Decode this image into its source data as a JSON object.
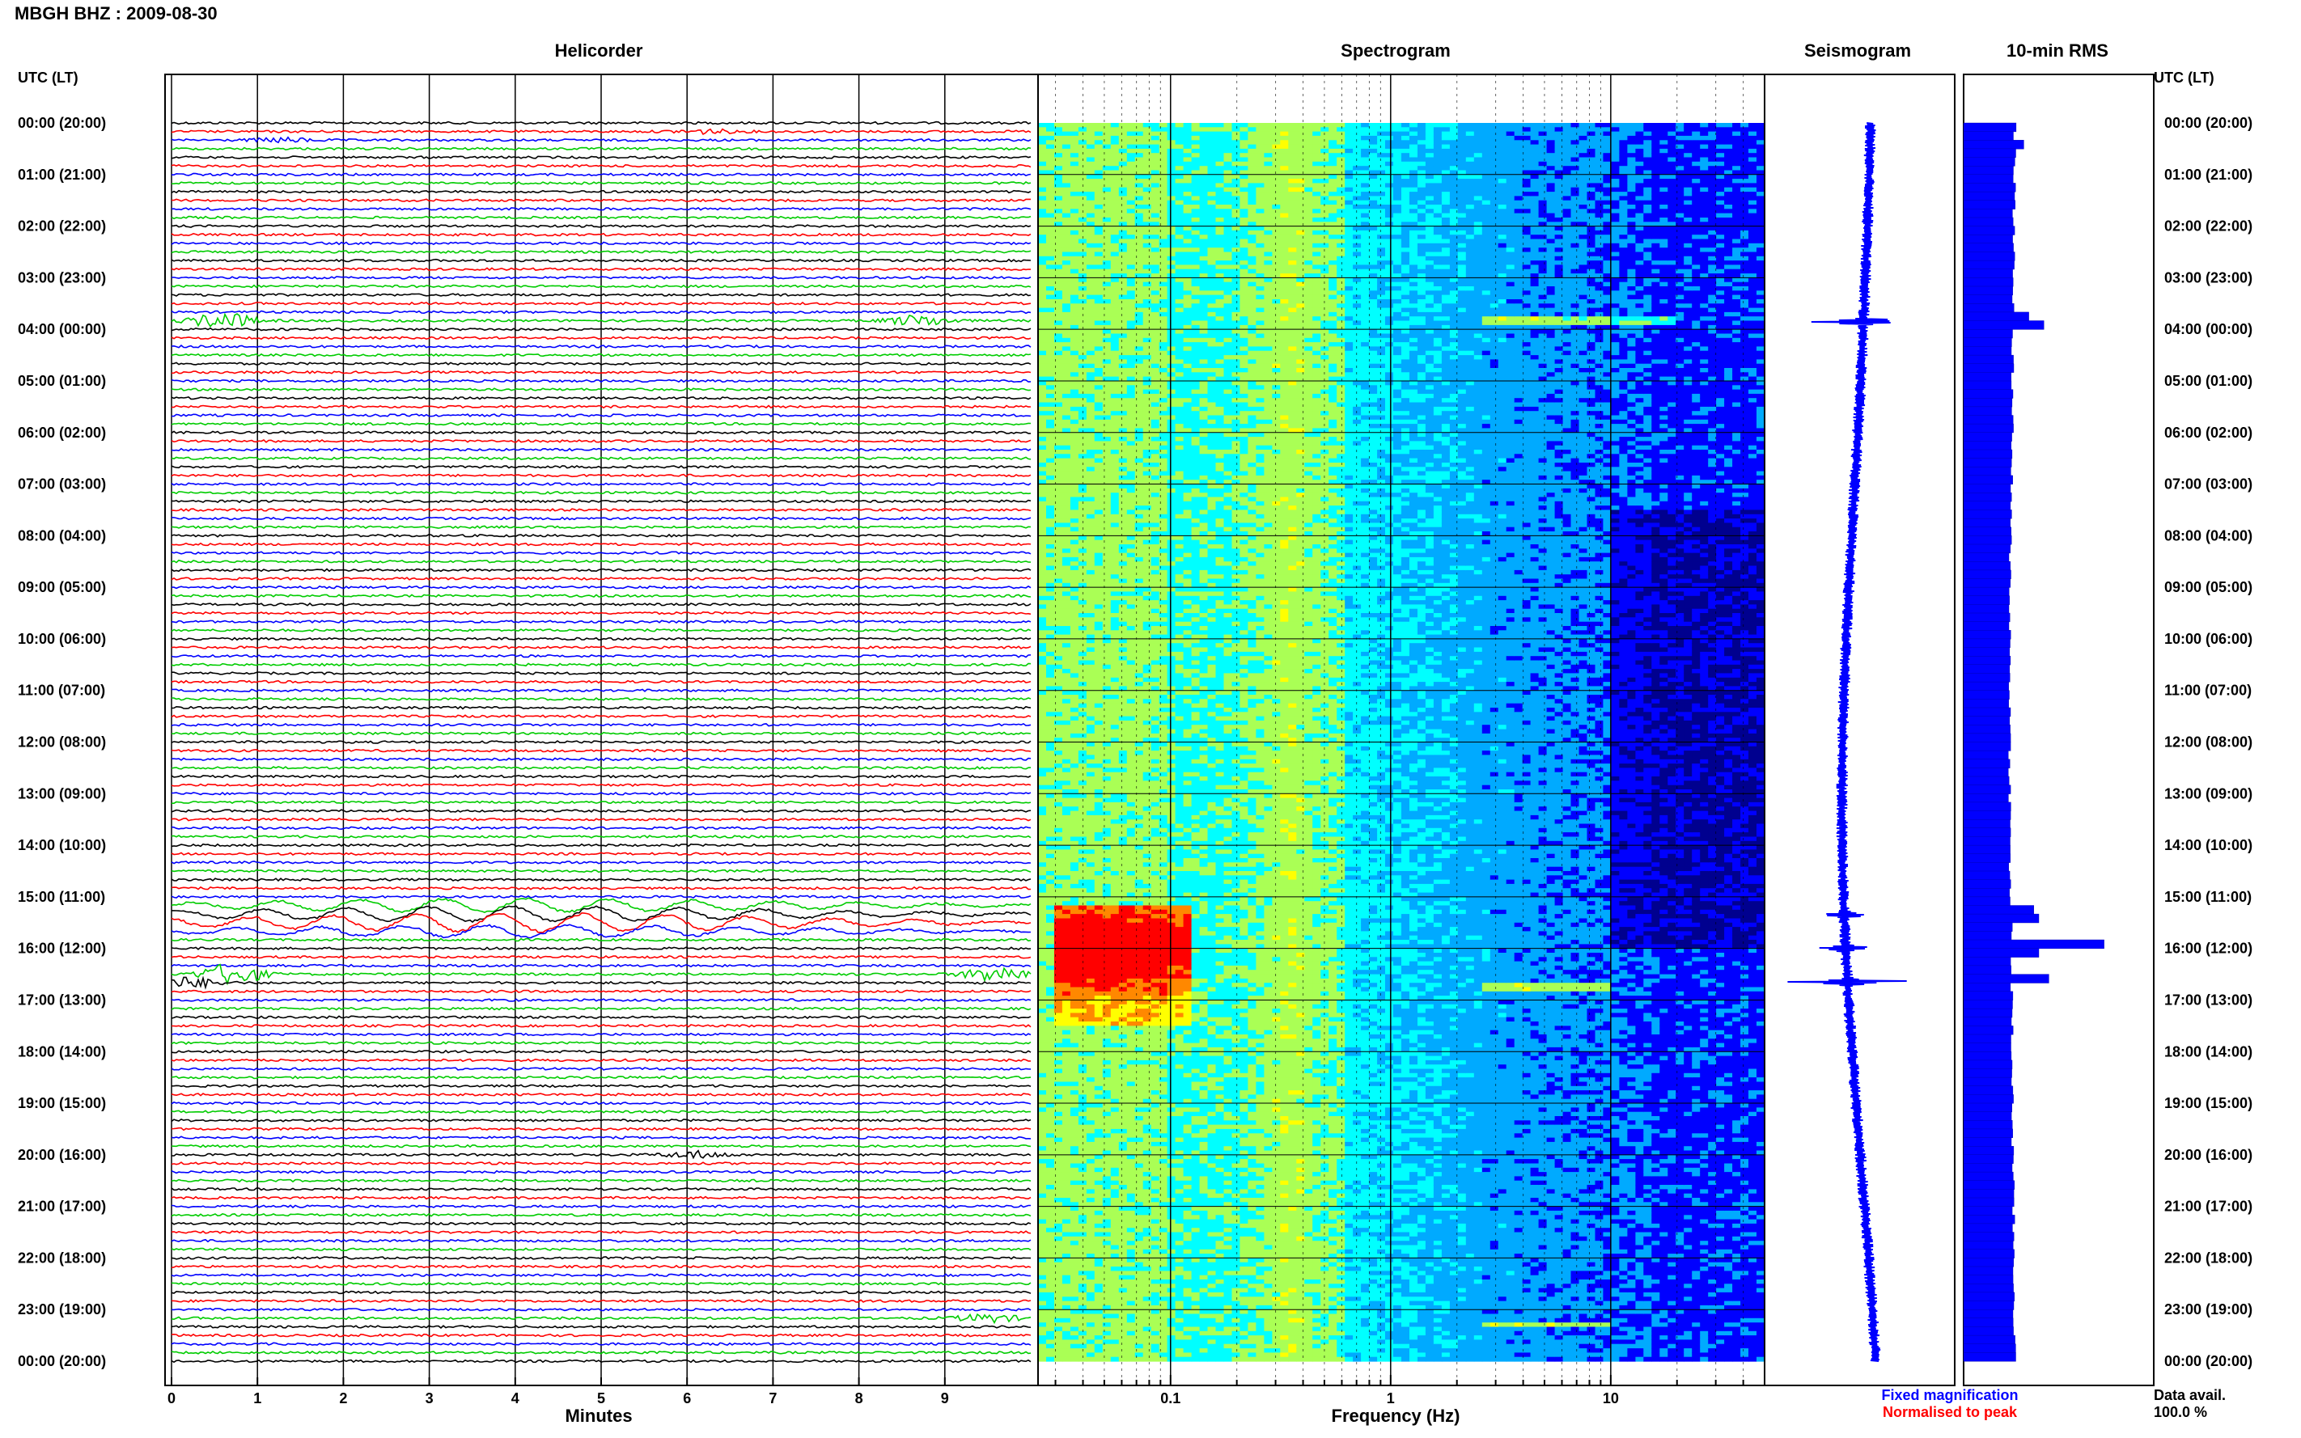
{
  "figure": {
    "title": "MBGH BHZ : 2009-08-30",
    "left_time_header": "UTC (LT)",
    "right_time_header": "UTC (LT)",
    "time_labels": [
      "00:00 (20:00)",
      "01:00 (21:00)",
      "02:00 (22:00)",
      "03:00 (23:00)",
      "04:00 (00:00)",
      "05:00 (01:00)",
      "06:00 (02:00)",
      "07:00 (03:00)",
      "08:00 (04:00)",
      "09:00 (05:00)",
      "10:00 (06:00)",
      "11:00 (07:00)",
      "12:00 (08:00)",
      "13:00 (09:00)",
      "14:00 (10:00)",
      "15:00 (11:00)",
      "16:00 (12:00)",
      "17:00 (13:00)",
      "18:00 (14:00)",
      "19:00 (15:00)",
      "20:00 (16:00)",
      "21:00 (17:00)",
      "22:00 (18:00)",
      "23:00 (19:00)",
      "00:00 (20:00)"
    ],
    "legend": {
      "fixed_label": "Fixed magnification",
      "fixed_color": "#0000ff",
      "normalised_label": "Normalised to peak",
      "normalised_color": "#ff0000"
    },
    "data_avail_label": "Data avail.",
    "data_avail_value": "100.0 %"
  },
  "chart_data": [
    {
      "type": "line",
      "title": "Helicorder",
      "xlabel": "Minutes",
      "x_ticks": [
        "0",
        "1",
        "2",
        "3",
        "4",
        "5",
        "6",
        "7",
        "8",
        "9"
      ],
      "xlim": [
        0,
        10
      ],
      "rows_per_hour": 6,
      "hours": 24,
      "trace_colors": [
        "#000000",
        "#ff0000",
        "#0000ff",
        "#00cc00"
      ],
      "events": [
        {
          "hour": 0.167,
          "minute": 6.2,
          "amplitude": 0.3
        },
        {
          "hour": 0.333,
          "minute": 1.3,
          "amplitude": 0.3
        },
        {
          "hour": 3.833,
          "minute": 0.6,
          "amplitude": 1.2
        },
        {
          "hour": 3.833,
          "minute": 8.7,
          "amplitude": 0.8
        },
        {
          "hour": 15.167,
          "minute": 4.0,
          "amplitude": 1.6
        },
        {
          "hour": 15.333,
          "minute": 4.0,
          "amplitude": 1.8
        },
        {
          "hour": 15.5,
          "minute": 4.0,
          "amplitude": 2.2
        },
        {
          "hour": 15.667,
          "minute": 4.0,
          "amplitude": 1.4
        },
        {
          "hour": 16.5,
          "minute": 0.7,
          "amplitude": 1.6
        },
        {
          "hour": 16.5,
          "minute": 9.6,
          "amplitude": 1.2
        },
        {
          "hour": 16.667,
          "minute": 0.2,
          "amplitude": 0.8
        },
        {
          "hour": 20.0,
          "minute": 6.1,
          "amplitude": 0.5
        },
        {
          "hour": 23.167,
          "minute": 9.5,
          "amplitude": 0.6
        }
      ]
    },
    {
      "type": "heatmap",
      "title": "Spectrogram",
      "xlabel": "Frequency (Hz)",
      "x_scale": "log",
      "xlim": [
        0.025,
        50
      ],
      "x_tick_labels": [
        {
          "value": 0.1,
          "label": "0.1"
        },
        {
          "value": 1,
          "label": "1"
        },
        {
          "value": 10,
          "label": "10"
        }
      ],
      "ylim_hours": [
        0,
        24
      ],
      "colormap": [
        "#00008f",
        "#0000ff",
        "#00aaff",
        "#00ffff",
        "#aaff55",
        "#ffff00",
        "#ff8800",
        "#ff0000"
      ],
      "features": [
        {
          "name": "microseism band",
          "freq_center": 0.35
        },
        {
          "name": "teleseism",
          "freq_range": [
            0.03,
            0.12
          ],
          "hours": [
            15.2,
            17.5
          ]
        },
        {
          "name": "line",
          "hour": 3.85,
          "freq_range": [
            2.5,
            20
          ]
        },
        {
          "name": "line",
          "hour": 16.75,
          "freq_range": [
            2.5,
            10
          ]
        },
        {
          "name": "line",
          "hour": 23.3,
          "freq_range": [
            2.5,
            10
          ]
        }
      ]
    },
    {
      "type": "line",
      "title": "Seismogram",
      "ylim_hours": [
        0,
        24
      ],
      "spikes": [
        {
          "hour": 3.85,
          "amplitude": 1.3
        },
        {
          "hour": 15.35,
          "amplitude": 0.4
        },
        {
          "hour": 16.0,
          "amplitude": 0.6
        },
        {
          "hour": 16.65,
          "amplitude": 1.6
        }
      ]
    },
    {
      "type": "bar",
      "title": "10-min RMS",
      "orientation": "horizontal",
      "ylim_hours": [
        0,
        24
      ],
      "baseline": 1.0,
      "peaks": [
        {
          "hour": 0.333,
          "value": 1.2
        },
        {
          "hour": 3.667,
          "value": 1.3
        },
        {
          "hour": 3.833,
          "value": 1.6
        },
        {
          "hour": 15.167,
          "value": 1.4
        },
        {
          "hour": 15.333,
          "value": 1.5
        },
        {
          "hour": 15.833,
          "value": 2.8
        },
        {
          "hour": 16.0,
          "value": 1.5
        },
        {
          "hour": 16.5,
          "value": 1.7
        }
      ]
    }
  ]
}
